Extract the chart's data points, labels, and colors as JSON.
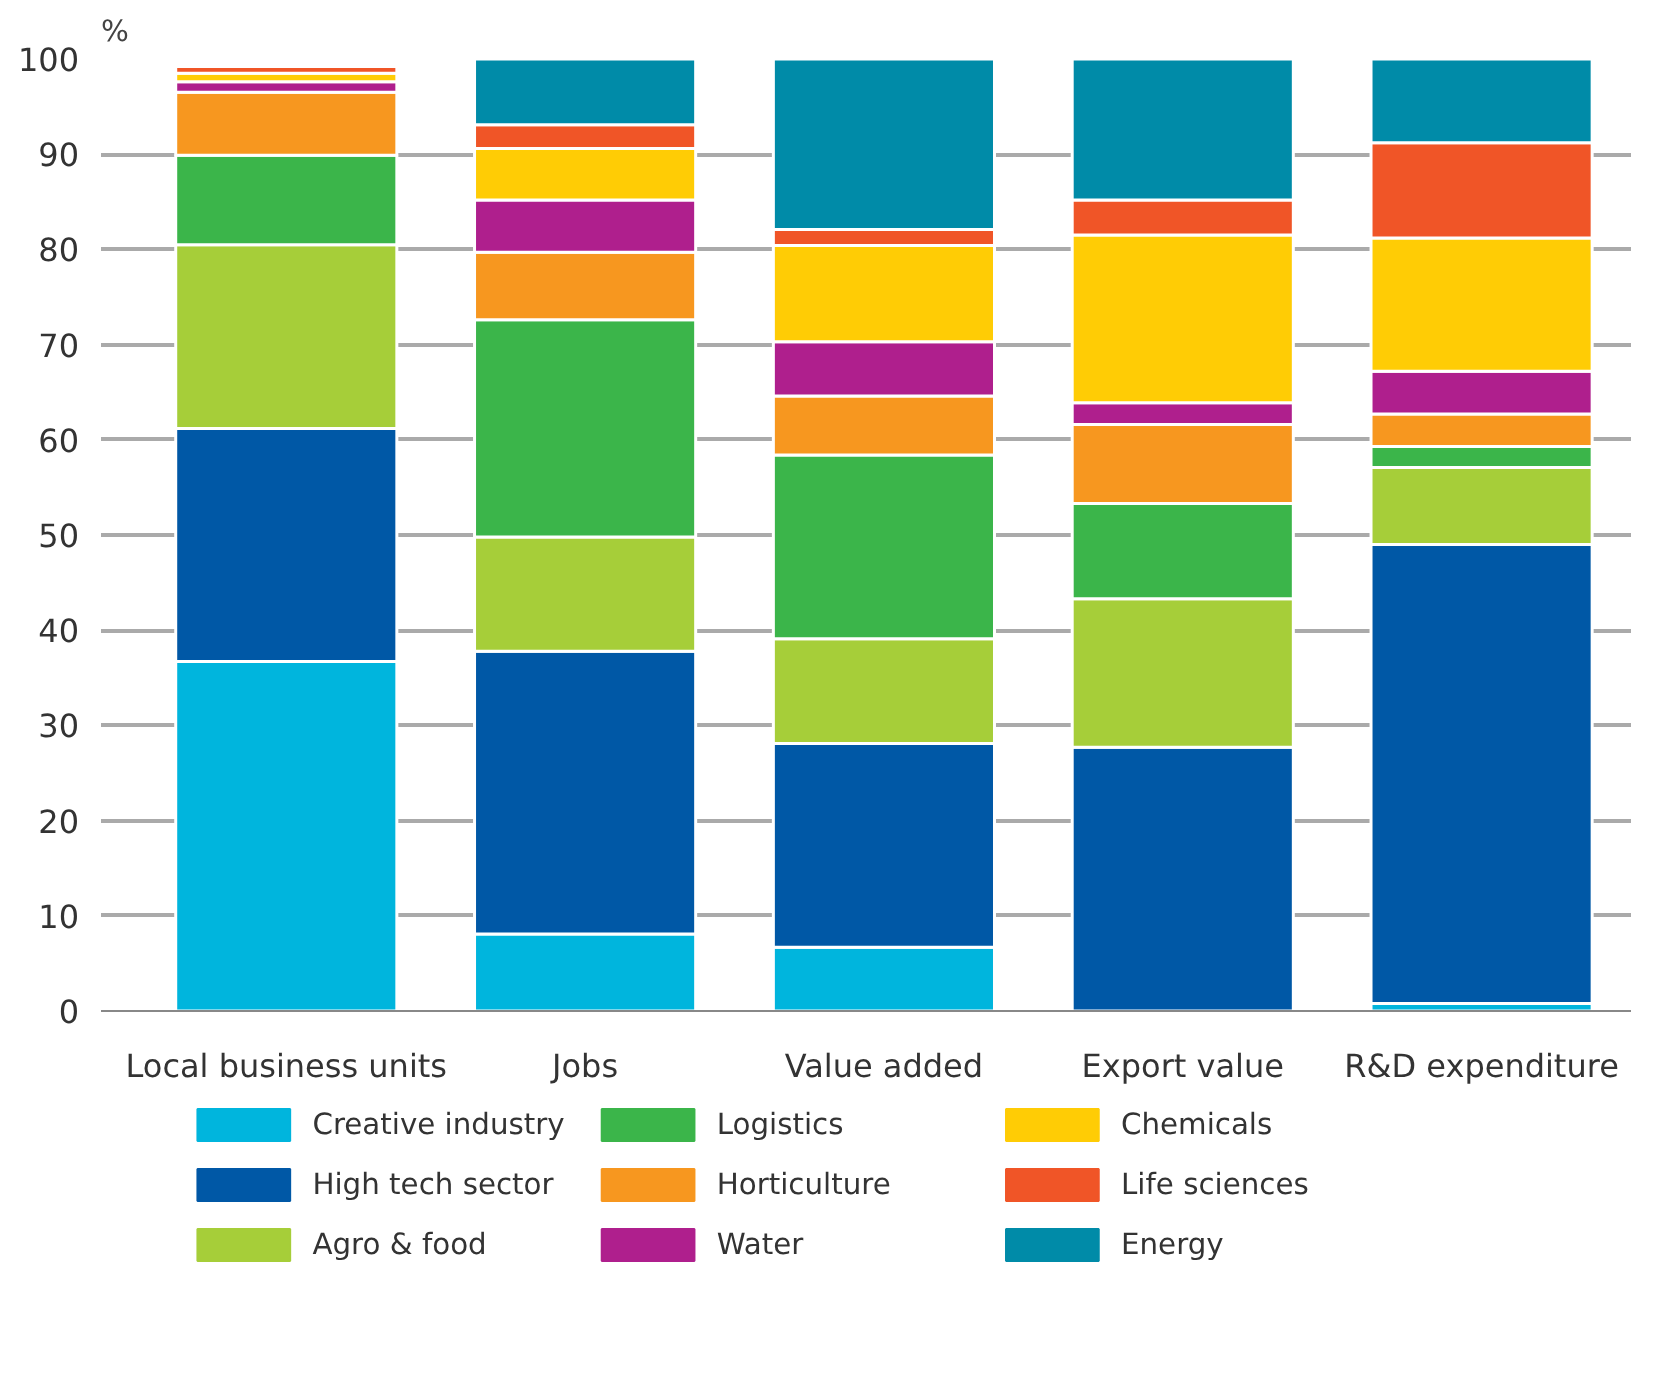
{
  "chart_data": {
    "type": "bar",
    "stacked": true,
    "ylabel": "%",
    "categories": [
      "Local business units",
      "Jobs",
      "Value added",
      "Export value",
      "R&D expenditure"
    ],
    "series": [
      {
        "name": "Creative industry",
        "color": "#00b5dd",
        "values": [
          36.7,
          8.1,
          6.7,
          null,
          0.8
        ]
      },
      {
        "name": "High tech sector",
        "color": "#0058a6",
        "values": [
          24.5,
          29.7,
          21.4,
          27.7,
          48.2
        ]
      },
      {
        "name": "Agro & food",
        "color": "#a6ce39",
        "values": [
          19.3,
          12.0,
          11.0,
          15.6,
          8.1
        ]
      },
      {
        "name": "Logistics",
        "color": "#3bb54a",
        "values": [
          9.4,
          22.8,
          19.3,
          10.0,
          2.2
        ]
      },
      {
        "name": "Horticulture",
        "color": "#f7971f",
        "values": [
          6.6,
          7.1,
          6.2,
          8.3,
          3.4
        ]
      },
      {
        "name": "Water",
        "color": "#af1f8d",
        "values": [
          1.1,
          5.5,
          5.7,
          2.3,
          4.5
        ]
      },
      {
        "name": "Chemicals",
        "color": "#ffcc05",
        "values": [
          0.9,
          5.4,
          10.1,
          17.6,
          14.0
        ]
      },
      {
        "name": "Life sciences",
        "color": "#f05527",
        "values": [
          0.7,
          2.5,
          1.7,
          3.7,
          10.0
        ]
      },
      {
        "name": "Energy",
        "color": "#008ba8",
        "values": [
          null,
          6.9,
          17.9,
          14.8,
          8.8
        ]
      }
    ],
    "ylim": [
      0,
      100
    ],
    "yticks": [
      0,
      10,
      20,
      30,
      40,
      50,
      60,
      70,
      80,
      90,
      100
    ],
    "grid": "y",
    "legend": "bottom"
  }
}
